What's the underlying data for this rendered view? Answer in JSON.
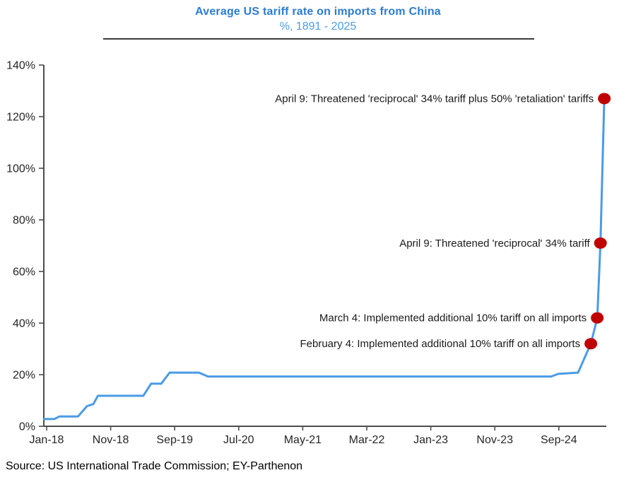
{
  "chart_data": {
    "type": "line",
    "title": "Average US tariff rate on imports from China",
    "subtitle": "%, 1891 - 2025",
    "source": "Source: US International Trade Commission; EY-Parthenon",
    "xlabel": "",
    "ylabel": "%",
    "ylim": [
      0,
      140
    ],
    "y_tick_step_pct": 20,
    "y_ticks": [
      "0%",
      "20%",
      "40%",
      "60%",
      "80%",
      "100%",
      "120%",
      "140%"
    ],
    "x_ticks": [
      "Jan-18",
      "Nov-18",
      "Sep-19",
      "Jul-20",
      "May-21",
      "Mar-22",
      "Jan-23",
      "Nov-23",
      "Sep-24"
    ],
    "x_tick_interval_months": 10,
    "grid": false,
    "legend": "none",
    "series": [
      {
        "name": "Average US tariff rate on imports from China (%)",
        "x_unit": "months since Jan-2018",
        "points": [
          [
            -0.4,
            2.8
          ],
          [
            1.2,
            2.8
          ],
          [
            2,
            3.8
          ],
          [
            4.9,
            3.8
          ],
          [
            6.3,
            7.8
          ],
          [
            7.3,
            8.6
          ],
          [
            8,
            11.8
          ],
          [
            15.1,
            11.8
          ],
          [
            16.3,
            16.5
          ],
          [
            17.9,
            16.5
          ],
          [
            19.2,
            20.8
          ],
          [
            23.8,
            20.8
          ],
          [
            25.2,
            19.3
          ],
          [
            78.8,
            19.3
          ],
          [
            79.9,
            20.3
          ],
          [
            83,
            20.8
          ],
          [
            85,
            32
          ],
          [
            86,
            42
          ],
          [
            86.5,
            71
          ],
          [
            87.1,
            127
          ]
        ]
      }
    ],
    "annotations": [
      {
        "label": "April 9: Threatened 'reciprocal' 34% tariff plus 50% 'retaliation'  tariffs",
        "month": 87.1,
        "value": 127
      },
      {
        "label": "April 9: Threatened 'reciprocal' 34% tariff",
        "month": 86.5,
        "value": 71
      },
      {
        "label": "March 4: Implemented additional 10% tariff on all imports",
        "month": 86.0,
        "value": 42
      },
      {
        "label": "February 4: Implemented additional 10% tariff on all imports",
        "month": 85.0,
        "value": 32
      }
    ],
    "colors": {
      "line": "#4A9BE5",
      "marker": "#C00000",
      "title": "#2B7CD3",
      "subtitle": "#4E9BE4",
      "axis": "#4D4D4D",
      "text": "#1A1A1A"
    }
  }
}
